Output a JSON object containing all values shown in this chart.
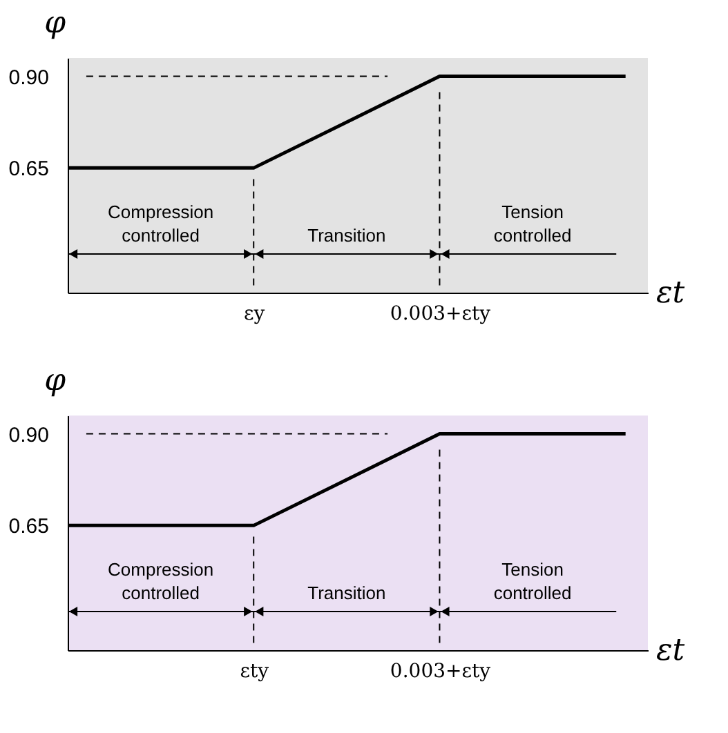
{
  "chart_data": [
    {
      "type": "line",
      "ylabel": "φ",
      "xlabel": "εt",
      "categories": [
        null,
        "εy",
        "0.003+εty",
        null
      ],
      "series": [
        {
          "color": "#000000",
          "values": [
            0.65,
            0.65,
            0.9,
            0.9
          ]
        }
      ],
      "ylim": [
        0.31,
        0.95
      ],
      "yticks": [
        0.65,
        {
          "value": 0.9,
          "label": "0.90"
        }
      ],
      "grid": false,
      "marker": "none",
      "line_style": "solid",
      "ref_lines": [
        {
          "axis": "y",
          "value": 0.9,
          "line_style": "dashed"
        },
        {
          "axis": "x",
          "value": "εy",
          "line_style": "dashed"
        },
        {
          "axis": "x",
          "value": "0.003+εty",
          "line_style": "dashed"
        }
      ],
      "annotations": [
        "Compression controlled",
        "Transition",
        "Tension controlled"
      ]
    },
    {
      "type": "line",
      "ylabel": "φ",
      "xlabel": "εt",
      "categories": [
        null,
        "εty",
        "0.003+εty",
        null
      ],
      "series": [
        {
          "color": "#000000",
          "values": [
            0.65,
            0.65,
            0.9,
            0.9
          ]
        }
      ],
      "ylim": [
        0.31,
        0.95
      ],
      "yticks": [
        0.65,
        {
          "value": 0.9,
          "label": "0.90"
        }
      ],
      "grid": false,
      "marker": "none",
      "line_style": "solid",
      "ref_lines": [
        {
          "axis": "y",
          "value": 0.9,
          "line_style": "dashed"
        },
        {
          "axis": "x",
          "value": "εty",
          "line_style": "dashed"
        },
        {
          "axis": "x",
          "value": "0.003+εty",
          "line_style": "dashed"
        }
      ],
      "annotations": [
        "Compression controlled",
        "Transition",
        "Tension controlled"
      ]
    }
  ]
}
